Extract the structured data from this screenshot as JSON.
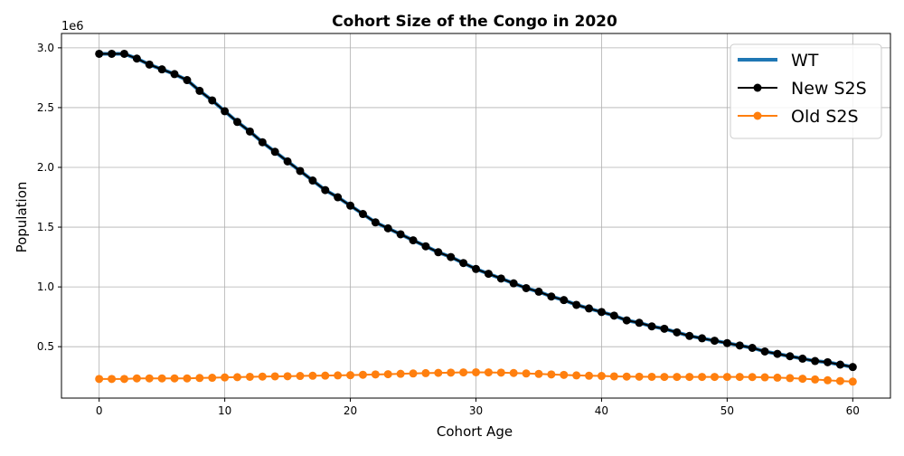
{
  "chart_data": {
    "type": "line",
    "title": "Cohort Size of the Congo in 2020",
    "xlabel": "Cohort Age",
    "ylabel": "Population",
    "y_offset_label": "1e6",
    "xlim": [
      -3,
      63
    ],
    "ylim": [
      0.07,
      3.12
    ],
    "y_scale_factor": 1000000,
    "grid": true,
    "legend_position": "top-right",
    "x_ticks": [
      0,
      10,
      20,
      30,
      40,
      50,
      60
    ],
    "y_ticks": [
      0.5,
      1.0,
      1.5,
      2.0,
      2.5,
      3.0
    ],
    "y_tick_labels": [
      "0.5",
      "1.0",
      "1.5",
      "2.0",
      "2.5",
      "3.0"
    ],
    "x": [
      0,
      1,
      2,
      3,
      4,
      5,
      6,
      7,
      8,
      9,
      10,
      11,
      12,
      13,
      14,
      15,
      16,
      17,
      18,
      19,
      20,
      21,
      22,
      23,
      24,
      25,
      26,
      27,
      28,
      29,
      30,
      31,
      32,
      33,
      34,
      35,
      36,
      37,
      38,
      39,
      40,
      41,
      42,
      43,
      44,
      45,
      46,
      47,
      48,
      49,
      50,
      51,
      52,
      53,
      54,
      55,
      56,
      57,
      58,
      59,
      60
    ],
    "series": [
      {
        "name": "WT",
        "color": "#1f77b4",
        "style": "line",
        "values": [
          2.95,
          2.95,
          2.95,
          2.91,
          2.86,
          2.82,
          2.78,
          2.73,
          2.64,
          2.56,
          2.47,
          2.38,
          2.3,
          2.21,
          2.13,
          2.05,
          1.97,
          1.89,
          1.81,
          1.75,
          1.68,
          1.61,
          1.54,
          1.49,
          1.44,
          1.39,
          1.34,
          1.29,
          1.25,
          1.2,
          1.15,
          1.11,
          1.07,
          1.03,
          0.99,
          0.96,
          0.92,
          0.89,
          0.85,
          0.82,
          0.79,
          0.76,
          0.72,
          0.7,
          0.67,
          0.65,
          0.62,
          0.59,
          0.57,
          0.55,
          0.53,
          0.51,
          0.49,
          0.46,
          0.44,
          0.42,
          0.4,
          0.38,
          0.37,
          0.35,
          0.33
        ]
      },
      {
        "name": "New S2S",
        "color": "#000000",
        "style": "line-marker",
        "values": [
          2.95,
          2.95,
          2.95,
          2.91,
          2.86,
          2.82,
          2.78,
          2.73,
          2.64,
          2.56,
          2.47,
          2.38,
          2.3,
          2.21,
          2.13,
          2.05,
          1.97,
          1.89,
          1.81,
          1.75,
          1.68,
          1.61,
          1.54,
          1.49,
          1.44,
          1.39,
          1.34,
          1.29,
          1.25,
          1.2,
          1.15,
          1.11,
          1.07,
          1.03,
          0.99,
          0.96,
          0.92,
          0.89,
          0.85,
          0.82,
          0.79,
          0.76,
          0.72,
          0.7,
          0.67,
          0.65,
          0.62,
          0.59,
          0.57,
          0.55,
          0.53,
          0.51,
          0.49,
          0.46,
          0.44,
          0.42,
          0.4,
          0.38,
          0.37,
          0.35,
          0.33
        ]
      },
      {
        "name": "Old S2S",
        "color": "#ff7f0e",
        "style": "line-marker",
        "values": [
          0.23,
          0.23,
          0.23,
          0.235,
          0.235,
          0.235,
          0.235,
          0.235,
          0.238,
          0.24,
          0.243,
          0.245,
          0.248,
          0.25,
          0.252,
          0.253,
          0.255,
          0.257,
          0.258,
          0.26,
          0.262,
          0.265,
          0.268,
          0.27,
          0.273,
          0.276,
          0.279,
          0.281,
          0.283,
          0.285,
          0.286,
          0.285,
          0.283,
          0.28,
          0.276,
          0.272,
          0.268,
          0.264,
          0.26,
          0.257,
          0.255,
          0.252,
          0.25,
          0.249,
          0.248,
          0.247,
          0.247,
          0.247,
          0.247,
          0.247,
          0.247,
          0.247,
          0.246,
          0.244,
          0.241,
          0.237,
          0.232,
          0.226,
          0.219,
          0.213,
          0.208
        ]
      }
    ]
  }
}
